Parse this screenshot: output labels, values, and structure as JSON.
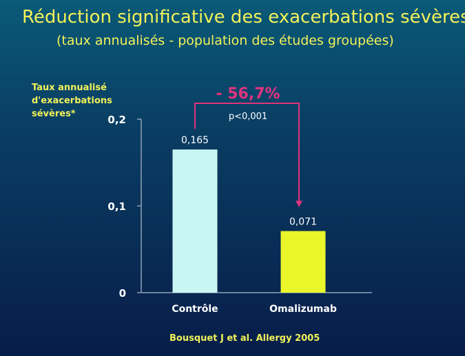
{
  "slide": {
    "title": "Réduction significative des exacerbations sévères",
    "subtitle": "(taux annualisés - population des études groupées)",
    "source": "Bousquet J et al. Allergy 2005"
  },
  "chart_data": {
    "type": "bar",
    "categories": [
      "Contrôle",
      "Omalizumab"
    ],
    "values": [
      0.165,
      0.071
    ],
    "value_labels": [
      "0,165",
      "0,071"
    ],
    "bar_colors": [
      "#c9f6f3",
      "#eaf62a"
    ],
    "ylabel_lines": [
      "Taux annualisé",
      "d'exacerbations",
      "sévères*"
    ],
    "ylim": [
      0,
      0.2
    ],
    "yticks": [
      0,
      0.1,
      0.2
    ],
    "ytick_labels": [
      "0",
      "0,1",
      "0,2"
    ],
    "annotation": {
      "reduction_label": "- 56,7%",
      "pvalue_label": "p<0,001",
      "color": "#e0347e"
    },
    "grid": false,
    "legend": "none"
  }
}
